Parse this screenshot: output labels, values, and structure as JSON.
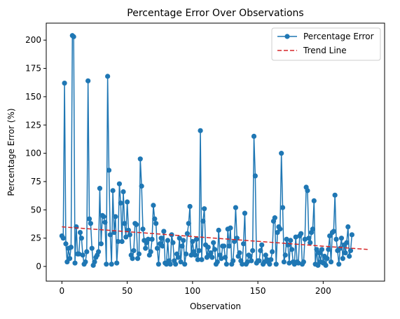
{
  "chart_data": {
    "type": "line",
    "title": "Percentage Error Over Observations",
    "xlabel": "Observation",
    "ylabel": "Percentage Error (%)",
    "xlim": [
      -12,
      247
    ],
    "ylim": [
      -13,
      215
    ],
    "xticks": [
      0,
      50,
      100,
      150,
      200
    ],
    "yticks": [
      0,
      25,
      50,
      75,
      100,
      125,
      150,
      175,
      200
    ],
    "grid": false,
    "legend_position": "top-right",
    "series": [
      {
        "name": "Percentage Error",
        "color": "#1f77b4",
        "marker": "circle",
        "values": [
          27,
          25,
          162,
          20,
          4,
          16,
          7,
          17,
          204,
          203,
          3,
          35,
          11,
          11,
          30,
          25,
          10,
          2,
          4,
          13,
          164,
          42,
          38,
          16,
          1,
          4,
          8,
          10,
          13,
          69,
          20,
          45,
          44,
          39,
          2,
          168,
          85,
          28,
          2,
          67,
          30,
          44,
          3,
          22,
          73,
          56,
          22,
          66,
          38,
          26,
          57,
          32,
          28,
          10,
          7,
          14,
          38,
          37,
          7,
          11,
          95,
          71,
          33,
          23,
          16,
          21,
          24,
          10,
          13,
          24,
          54,
          42,
          38,
          16,
          2,
          20,
          25,
          18,
          31,
          3,
          2,
          23,
          5,
          2,
          28,
          21,
          5,
          2,
          11,
          8,
          25,
          4,
          18,
          23,
          2,
          11,
          29,
          38,
          53,
          10,
          22,
          13,
          10,
          24,
          6,
          14,
          120,
          6,
          40,
          51,
          19,
          8,
          17,
          10,
          12,
          8,
          21,
          15,
          2,
          4,
          32,
          10,
          7,
          18,
          18,
          8,
          2,
          33,
          18,
          34,
          2,
          5,
          22,
          52,
          25,
          9,
          12,
          5,
          2,
          20,
          47,
          2,
          4,
          10,
          9,
          5,
          14,
          115,
          80,
          3,
          5,
          5,
          14,
          19,
          2,
          4,
          10,
          6,
          4,
          2,
          6,
          13,
          40,
          43,
          2,
          30,
          35,
          33,
          100,
          52,
          4,
          10,
          24,
          19,
          3,
          23,
          15,
          4,
          2,
          26,
          4,
          3,
          27,
          29,
          2,
          4,
          24,
          70,
          67,
          25,
          21,
          30,
          33,
          58,
          2,
          15,
          1,
          12,
          4,
          15,
          3,
          9,
          1,
          7,
          15,
          27,
          4,
          30,
          31,
          63,
          24,
          14,
          2,
          16,
          25,
          7,
          19,
          12,
          21,
          35,
          9,
          14,
          28
        ],
        "x_start": 0
      },
      {
        "name": "Trend Line",
        "color": "#d62728",
        "style": "dashed",
        "x": [
          0,
          234
        ],
        "values": [
          35,
          15
        ]
      }
    ]
  }
}
